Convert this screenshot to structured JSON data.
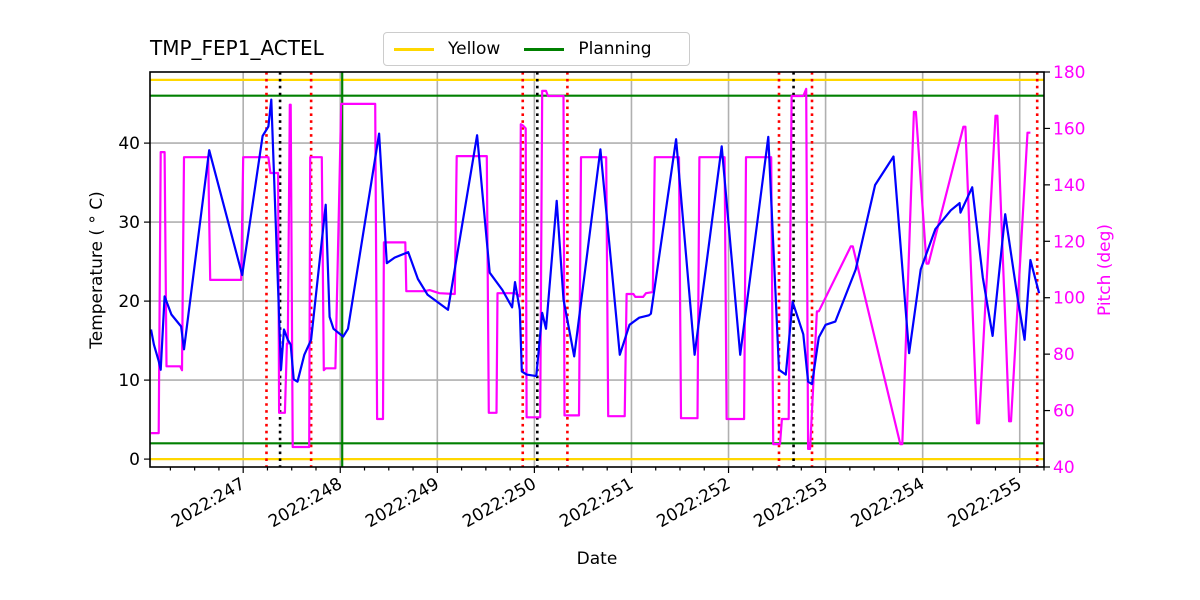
{
  "title": "TMP_FEP1_ACTEL",
  "legend": [
    {
      "label": "Yellow",
      "color": "#ffd700"
    },
    {
      "label": "Planning",
      "color": "#008000"
    }
  ],
  "axes": {
    "xlabel": "Date",
    "ylabel_left": "Temperature ($^\\circ$C)",
    "ylabel_left_display": "Temperature ( ° C)",
    "ylabel_right": "Pitch (deg)"
  },
  "chart_data": {
    "type": "line",
    "title": "TMP_FEP1_ACTEL",
    "xlabel": "Date",
    "ylabel": "Temperature (°C)",
    "ylabel_right": "Pitch (deg)",
    "xlim": [
      246.04,
      255.25
    ],
    "ylim": [
      -1,
      49
    ],
    "ylim_right": [
      40,
      180
    ],
    "x_ticks": [
      247,
      248,
      249,
      250,
      251,
      252,
      253,
      254,
      255
    ],
    "x_tick_labels": [
      "2022:247",
      "2022:248",
      "2022:249",
      "2022:250",
      "2022:251",
      "2022:252",
      "2022:253",
      "2022:254",
      "2022:255"
    ],
    "y_ticks": [
      0,
      10,
      20,
      30,
      40
    ],
    "y_ticks_right": [
      40,
      60,
      80,
      100,
      120,
      140,
      160,
      180
    ],
    "grid": true,
    "legend_position": "upper center (above axes)",
    "hlines": [
      {
        "name": "Yellow",
        "y": 48,
        "color": "#ffd700"
      },
      {
        "name": "Yellow",
        "y": 0,
        "color": "#ffd700"
      },
      {
        "name": "Planning",
        "y": 46,
        "color": "#008000"
      },
      {
        "name": "Planning",
        "y": 2,
        "color": "#008000"
      }
    ],
    "vlines": [
      {
        "x": 247.24,
        "color": "#ff0000",
        "style": "dotted"
      },
      {
        "x": 247.38,
        "color": "#000000",
        "style": "dotted"
      },
      {
        "x": 247.7,
        "color": "#ff0000",
        "style": "dotted"
      },
      {
        "x": 248.02,
        "color": "#008000",
        "style": "solid"
      },
      {
        "x": 249.88,
        "color": "#ff0000",
        "style": "dotted"
      },
      {
        "x": 250.03,
        "color": "#000000",
        "style": "dotted"
      },
      {
        "x": 250.34,
        "color": "#ff0000",
        "style": "dotted"
      },
      {
        "x": 252.52,
        "color": "#ff0000",
        "style": "dotted"
      },
      {
        "x": 252.67,
        "color": "#000000",
        "style": "dotted"
      },
      {
        "x": 252.86,
        "color": "#ff0000",
        "style": "dotted"
      },
      {
        "x": 255.18,
        "color": "#ff0000",
        "style": "dotted"
      }
    ],
    "series": [
      {
        "name": "TMP_FEP1_ACTEL",
        "axis": "left",
        "color": "#0000ff",
        "x": [
          246.05,
          246.08,
          246.13,
          246.15,
          246.19,
          246.26,
          246.34,
          246.36,
          246.39,
          246.65,
          246.99,
          247.2,
          247.26,
          247.29,
          247.39,
          247.42,
          247.46,
          247.49,
          247.52,
          247.56,
          247.63,
          247.7,
          247.85,
          247.89,
          247.93,
          248.03,
          248.08,
          248.4,
          248.48,
          248.56,
          248.7,
          248.8,
          248.9,
          249.11,
          249.41,
          249.54,
          249.67,
          249.77,
          249.8,
          249.85,
          249.87,
          249.92,
          250.02,
          250.08,
          250.12,
          250.23,
          250.3,
          250.41,
          250.68,
          250.88,
          250.98,
          251.08,
          251.18,
          251.2,
          251.46,
          251.65,
          251.93,
          252.12,
          252.41,
          252.49,
          252.52,
          252.59,
          252.66,
          252.72,
          252.77,
          252.82,
          252.86,
          252.93,
          253.0,
          253.1,
          253.31,
          253.51,
          253.7,
          253.86,
          253.98,
          254.13,
          254.29,
          254.38,
          254.39,
          254.51,
          254.62,
          254.72,
          254.85,
          254.98,
          255.05,
          255.11,
          255.2
        ],
        "y": [
          16.4,
          14.5,
          12.4,
          11.3,
          20.6,
          18.3,
          17.1,
          16.8,
          13.9,
          39.1,
          23.3,
          40.9,
          42.1,
          45.5,
          11.3,
          16.4,
          15.1,
          14.5,
          10.1,
          9.8,
          13.2,
          15.1,
          32.2,
          18.0,
          16.5,
          15.5,
          16.5,
          41.2,
          24.8,
          25.5,
          26.2,
          22.8,
          20.8,
          18.9,
          41.0,
          23.6,
          21.4,
          19.2,
          22.4,
          18.9,
          11.1,
          10.7,
          10.5,
          18.5,
          16.5,
          32.7,
          20.2,
          13.0,
          39.2,
          13.2,
          17.0,
          17.9,
          18.2,
          18.4,
          40.5,
          13.2,
          39.6,
          13.2,
          40.8,
          19.4,
          11.3,
          10.7,
          19.9,
          17.7,
          15.8,
          9.8,
          9.5,
          15.4,
          17.0,
          17.4,
          24.0,
          34.7,
          38.3,
          13.4,
          24.0,
          29.1,
          31.5,
          32.4,
          31.2,
          34.4,
          23.0,
          15.6,
          31.0,
          20.2,
          15.1,
          25.2,
          21.0
        ]
      },
      {
        "name": "Pitch",
        "axis": "right",
        "color": "#ff00ff",
        "x": [
          246.05,
          246.13,
          246.15,
          246.19,
          246.21,
          246.35,
          246.37,
          246.39,
          246.64,
          246.66,
          246.98,
          247.0,
          247.26,
          247.28,
          247.36,
          247.37,
          247.43,
          247.45,
          247.46,
          247.48,
          247.49,
          247.51,
          247.68,
          247.69,
          247.81,
          247.83,
          247.85,
          247.95,
          248.01,
          248.36,
          248.38,
          248.44,
          248.45,
          248.67,
          248.68,
          248.87,
          248.92,
          249.02,
          249.18,
          249.2,
          249.51,
          249.53,
          249.61,
          249.62,
          249.8,
          249.85,
          249.86,
          249.88,
          249.91,
          249.92,
          250.06,
          250.08,
          250.12,
          250.14,
          250.3,
          250.31,
          250.46,
          250.48,
          250.74,
          250.76,
          250.93,
          250.95,
          251.02,
          251.04,
          251.12,
          251.15,
          251.22,
          251.24,
          251.49,
          251.51,
          251.68,
          251.7,
          251.96,
          251.98,
          252.16,
          252.18,
          252.44,
          252.46,
          252.53,
          252.55,
          252.62,
          252.65,
          252.77,
          252.8,
          252.82,
          252.84,
          252.91,
          252.93,
          253.26,
          253.28,
          253.77,
          253.79,
          253.91,
          253.93,
          254.04,
          254.06,
          254.42,
          254.44,
          254.56,
          254.58,
          254.75,
          254.77,
          254.89,
          254.91,
          255.08,
          255.11
        ],
        "y": [
          52.0,
          52.0,
          151.6,
          151.6,
          75.7,
          75.7,
          74.3,
          149.8,
          149.8,
          106.3,
          106.3,
          149.8,
          149.8,
          144.2,
          144.2,
          59.2,
          59.2,
          83.7,
          83.7,
          168.4,
          168.4,
          47.1,
          47.1,
          149.8,
          149.8,
          74.3,
          75.0,
          75.0,
          168.7,
          168.7,
          57.0,
          57.0,
          119.6,
          119.6,
          102.3,
          102.3,
          102.7,
          101.6,
          101.3,
          150.2,
          150.2,
          59.2,
          59.2,
          101.6,
          101.6,
          100.5,
          161.5,
          161.1,
          160.0,
          57.6,
          57.6,
          173.3,
          173.3,
          171.5,
          171.5,
          58.3,
          58.3,
          149.8,
          149.8,
          58.0,
          58.0,
          101.3,
          101.3,
          100.3,
          100.3,
          101.6,
          102.0,
          149.8,
          149.8,
          57.3,
          57.3,
          149.8,
          149.8,
          57.0,
          57.0,
          149.8,
          149.8,
          48.1,
          48.1,
          57.0,
          57.0,
          171.5,
          171.5,
          174.0,
          46.4,
          46.4,
          95.2,
          95.2,
          118.2,
          118.2,
          48.1,
          48.1,
          165.9,
          165.9,
          112.1,
          112.1,
          160.6,
          160.6,
          55.5,
          55.5,
          164.5,
          164.5,
          56.2,
          56.2,
          158.5,
          158.5
        ]
      }
    ]
  }
}
